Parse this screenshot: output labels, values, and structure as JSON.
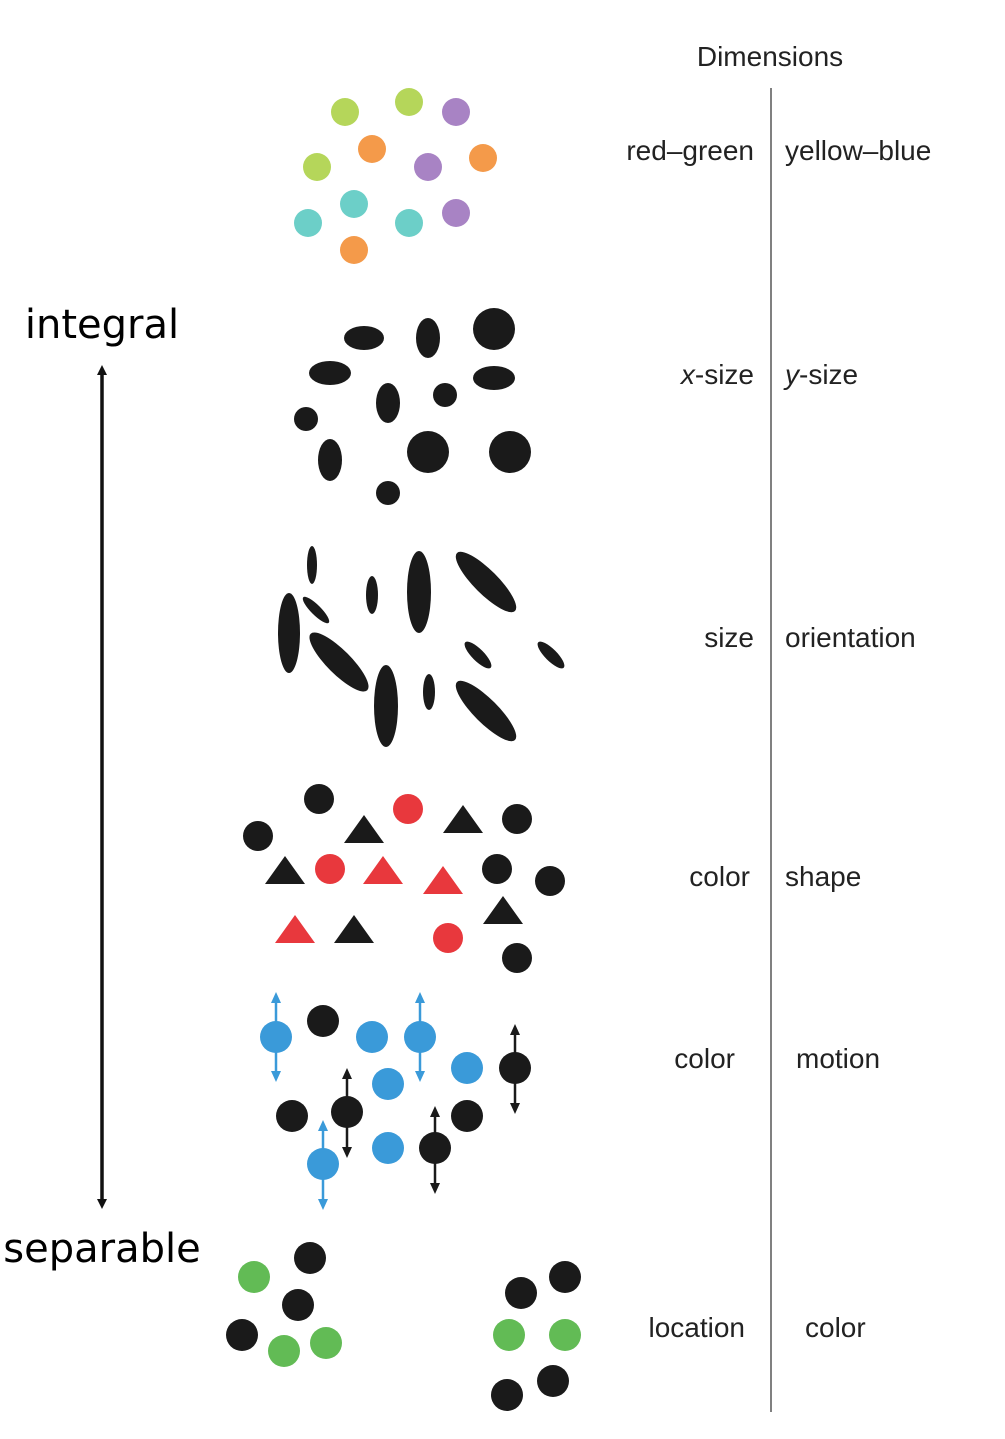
{
  "header": {
    "title": "Dimensions"
  },
  "axis": {
    "top_label": "integral",
    "bottom_label": "separable"
  },
  "colors": {
    "ink": "#1a1a1a",
    "divider": "#808080",
    "lime": "#b5d65a",
    "orange": "#f49a4a",
    "purple": "#a883c4",
    "teal": "#6ccfc8",
    "red": "#e8383d",
    "blue": "#3a9ad9",
    "green": "#62bb55"
  },
  "rows": [
    {
      "id": "red-green-yellow-blue",
      "left": "red–green",
      "right": "yellow–blue"
    },
    {
      "id": "xsize-ysize",
      "left_var": "x",
      "left_suffix": "-size",
      "right_var": "y",
      "right_suffix": "-size"
    },
    {
      "id": "size-orientation",
      "left": "size",
      "right": "orientation"
    },
    {
      "id": "color-shape",
      "left": "color",
      "right": "shape"
    },
    {
      "id": "color-motion",
      "left": "color",
      "right": "motion"
    },
    {
      "id": "location-color",
      "left": "location",
      "right": "color"
    }
  ]
}
